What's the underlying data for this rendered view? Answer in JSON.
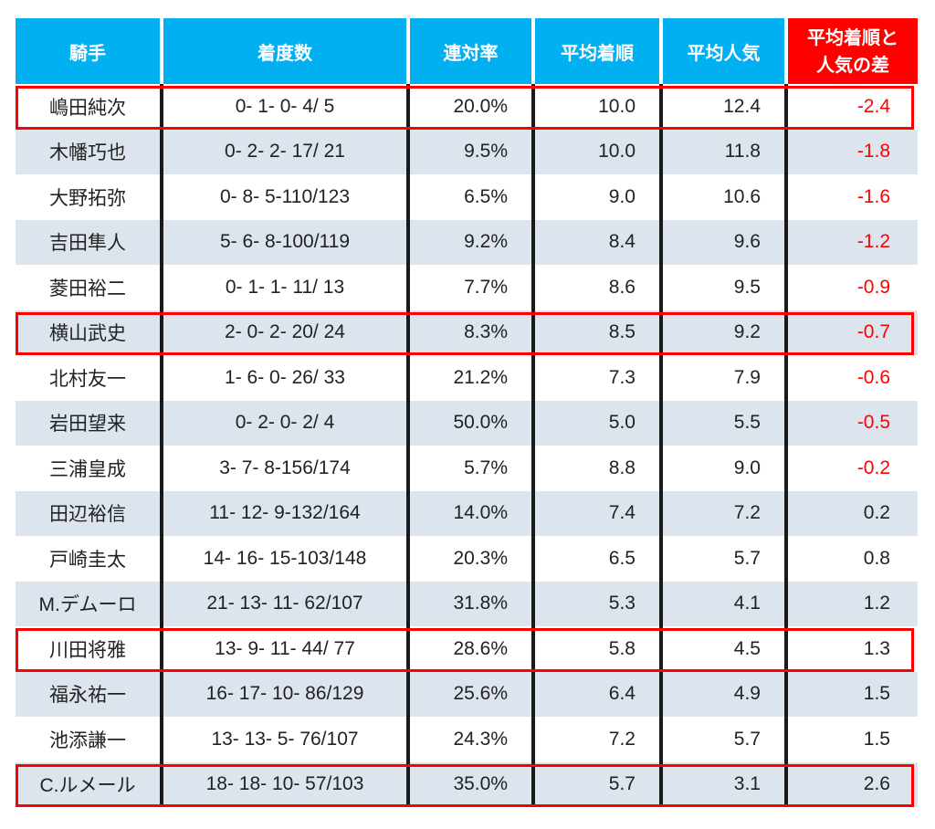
{
  "colors": {
    "header_bg": "#00b0f0",
    "diff_header_bg": "#ff0000",
    "negative": "#ff0000",
    "stripe": "#dce4ee"
  },
  "headers": {
    "jockey": "騎手",
    "record": "着度数",
    "rate": "連対率",
    "avg_finish": "平均着順",
    "avg_pop": "平均人気",
    "diff_line1": "平均着順と",
    "diff_line2": "人気の差"
  },
  "rows": [
    {
      "jockey": "嶋田純次",
      "record": "0- 1- 0- 4/ 5",
      "rate": "20.0%",
      "avg_finish": "10.0",
      "avg_pop": "12.4",
      "diff": "-2.4",
      "highlight": true
    },
    {
      "jockey": "木幡巧也",
      "record": "0- 2- 2- 17/ 21",
      "rate": "9.5%",
      "avg_finish": "10.0",
      "avg_pop": "11.8",
      "diff": "-1.8",
      "highlight": false
    },
    {
      "jockey": "大野拓弥",
      "record": "0- 8- 5-110/123",
      "rate": "6.5%",
      "avg_finish": "9.0",
      "avg_pop": "10.6",
      "diff": "-1.6",
      "highlight": false
    },
    {
      "jockey": "吉田隼人",
      "record": "5- 6- 8-100/119",
      "rate": "9.2%",
      "avg_finish": "8.4",
      "avg_pop": "9.6",
      "diff": "-1.2",
      "highlight": false
    },
    {
      "jockey": "菱田裕二",
      "record": "0- 1- 1- 11/ 13",
      "rate": "7.7%",
      "avg_finish": "8.6",
      "avg_pop": "9.5",
      "diff": "-0.9",
      "highlight": false
    },
    {
      "jockey": "横山武史",
      "record": "2- 0- 2- 20/ 24",
      "rate": "8.3%",
      "avg_finish": "8.5",
      "avg_pop": "9.2",
      "diff": "-0.7",
      "highlight": true
    },
    {
      "jockey": "北村友一",
      "record": "1- 6- 0- 26/ 33",
      "rate": "21.2%",
      "avg_finish": "7.3",
      "avg_pop": "7.9",
      "diff": "-0.6",
      "highlight": false
    },
    {
      "jockey": "岩田望来",
      "record": "0- 2- 0- 2/ 4",
      "rate": "50.0%",
      "avg_finish": "5.0",
      "avg_pop": "5.5",
      "diff": "-0.5",
      "highlight": false
    },
    {
      "jockey": "三浦皇成",
      "record": "3- 7- 8-156/174",
      "rate": "5.7%",
      "avg_finish": "8.8",
      "avg_pop": "9.0",
      "diff": "-0.2",
      "highlight": false
    },
    {
      "jockey": "田辺裕信",
      "record": "11- 12- 9-132/164",
      "rate": "14.0%",
      "avg_finish": "7.4",
      "avg_pop": "7.2",
      "diff": "0.2",
      "highlight": false
    },
    {
      "jockey": "戸崎圭太",
      "record": "14- 16- 15-103/148",
      "rate": "20.3%",
      "avg_finish": "6.5",
      "avg_pop": "5.7",
      "diff": "0.8",
      "highlight": false
    },
    {
      "jockey": "M.デムーロ",
      "record": "21- 13- 11- 62/107",
      "rate": "31.8%",
      "avg_finish": "5.3",
      "avg_pop": "4.1",
      "diff": "1.2",
      "highlight": false
    },
    {
      "jockey": "川田将雅",
      "record": "13- 9- 11- 44/ 77",
      "rate": "28.6%",
      "avg_finish": "5.8",
      "avg_pop": "4.5",
      "diff": "1.3",
      "highlight": true
    },
    {
      "jockey": "福永祐一",
      "record": "16- 17- 10- 86/129",
      "rate": "25.6%",
      "avg_finish": "6.4",
      "avg_pop": "4.9",
      "diff": "1.5",
      "highlight": false
    },
    {
      "jockey": "池添謙一",
      "record": "13- 13- 5- 76/107",
      "rate": "24.3%",
      "avg_finish": "7.2",
      "avg_pop": "5.7",
      "diff": "1.5",
      "highlight": false
    },
    {
      "jockey": "C.ルメール",
      "record": "18- 18- 10- 57/103",
      "rate": "35.0%",
      "avg_finish": "5.7",
      "avg_pop": "3.1",
      "diff": "2.6",
      "highlight": true
    }
  ]
}
